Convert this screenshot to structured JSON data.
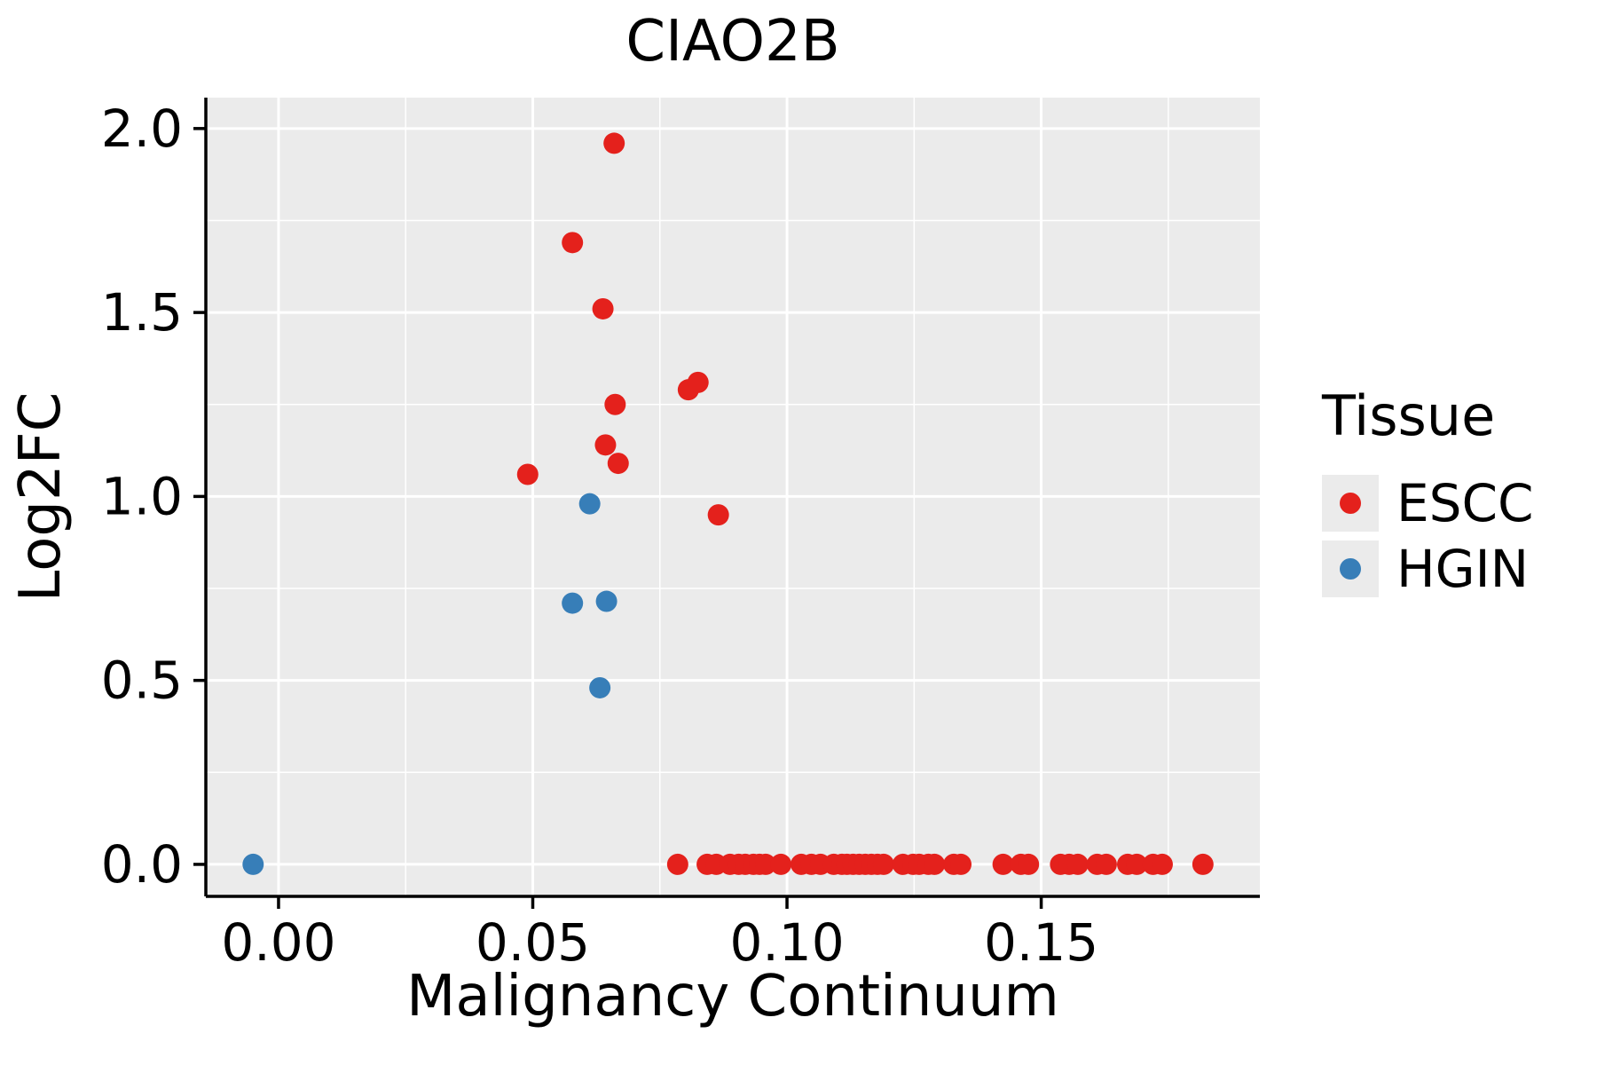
{
  "chart_data": {
    "type": "scatter",
    "title": "CIAO2B",
    "xlabel": "Malignancy Continuum",
    "ylabel": "Log2FC",
    "xlim": [
      -0.0143,
      0.193
    ],
    "ylim": [
      -0.087,
      2.084
    ],
    "x_ticks": {
      "values": [
        0.0,
        0.05,
        0.1,
        0.15
      ],
      "labels": [
        "0.00",
        "0.05",
        "0.10",
        "0.15"
      ]
    },
    "y_ticks": {
      "values": [
        0.0,
        0.5,
        1.0,
        1.5,
        2.0
      ],
      "labels": [
        "0.0",
        "0.5",
        "1.0",
        "1.5",
        "2.0"
      ]
    },
    "x_minor": [
      0.025,
      0.075,
      0.125,
      0.175
    ],
    "y_minor": [
      0.25,
      0.75,
      1.25,
      1.75
    ],
    "grid": true,
    "panel_background": "#EBEBEB",
    "grid_color": "#FFFFFF",
    "axis_color": "#000000",
    "legend": {
      "title": "Tissue",
      "position": "right"
    },
    "series": [
      {
        "name": "ESCC",
        "color": "#E4211C",
        "points": [
          [
            0.049,
            1.06
          ],
          [
            0.0578,
            1.69
          ],
          [
            0.0638,
            1.51
          ],
          [
            0.066,
            1.96
          ],
          [
            0.0643,
            1.14
          ],
          [
            0.0662,
            1.25
          ],
          [
            0.0668,
            1.09
          ],
          [
            0.0806,
            1.29
          ],
          [
            0.0825,
            1.31
          ],
          [
            0.0865,
            0.95
          ],
          [
            0.0785,
            0
          ],
          [
            0.0843,
            0
          ],
          [
            0.0861,
            0
          ],
          [
            0.0888,
            0
          ],
          [
            0.0905,
            0
          ],
          [
            0.0918,
            0
          ],
          [
            0.0934,
            0
          ],
          [
            0.0946,
            0
          ],
          [
            0.0958,
            0
          ],
          [
            0.0988,
            0
          ],
          [
            0.1028,
            0
          ],
          [
            0.1048,
            0
          ],
          [
            0.1066,
            0
          ],
          [
            0.1092,
            0
          ],
          [
            0.1108,
            0
          ],
          [
            0.1118,
            0
          ],
          [
            0.113,
            0
          ],
          [
            0.1142,
            0
          ],
          [
            0.1154,
            0
          ],
          [
            0.1166,
            0
          ],
          [
            0.1178,
            0
          ],
          [
            0.119,
            0
          ],
          [
            0.1228,
            0
          ],
          [
            0.1248,
            0
          ],
          [
            0.126,
            0
          ],
          [
            0.1278,
            0
          ],
          [
            0.129,
            0
          ],
          [
            0.1328,
            0
          ],
          [
            0.1342,
            0
          ],
          [
            0.1425,
            0
          ],
          [
            0.146,
            0
          ],
          [
            0.1475,
            0
          ],
          [
            0.1538,
            0
          ],
          [
            0.1555,
            0
          ],
          [
            0.1572,
            0
          ],
          [
            0.161,
            0
          ],
          [
            0.1628,
            0
          ],
          [
            0.167,
            0
          ],
          [
            0.1688,
            0
          ],
          [
            0.172,
            0
          ],
          [
            0.1738,
            0
          ],
          [
            0.1818,
            0
          ]
        ]
      },
      {
        "name": "HGIN",
        "color": "#377EB8",
        "points": [
          [
            -0.005,
            0.0
          ],
          [
            0.0578,
            0.71
          ],
          [
            0.0612,
            0.98
          ],
          [
            0.0632,
            0.48
          ],
          [
            0.0645,
            0.715
          ]
        ]
      }
    ]
  }
}
